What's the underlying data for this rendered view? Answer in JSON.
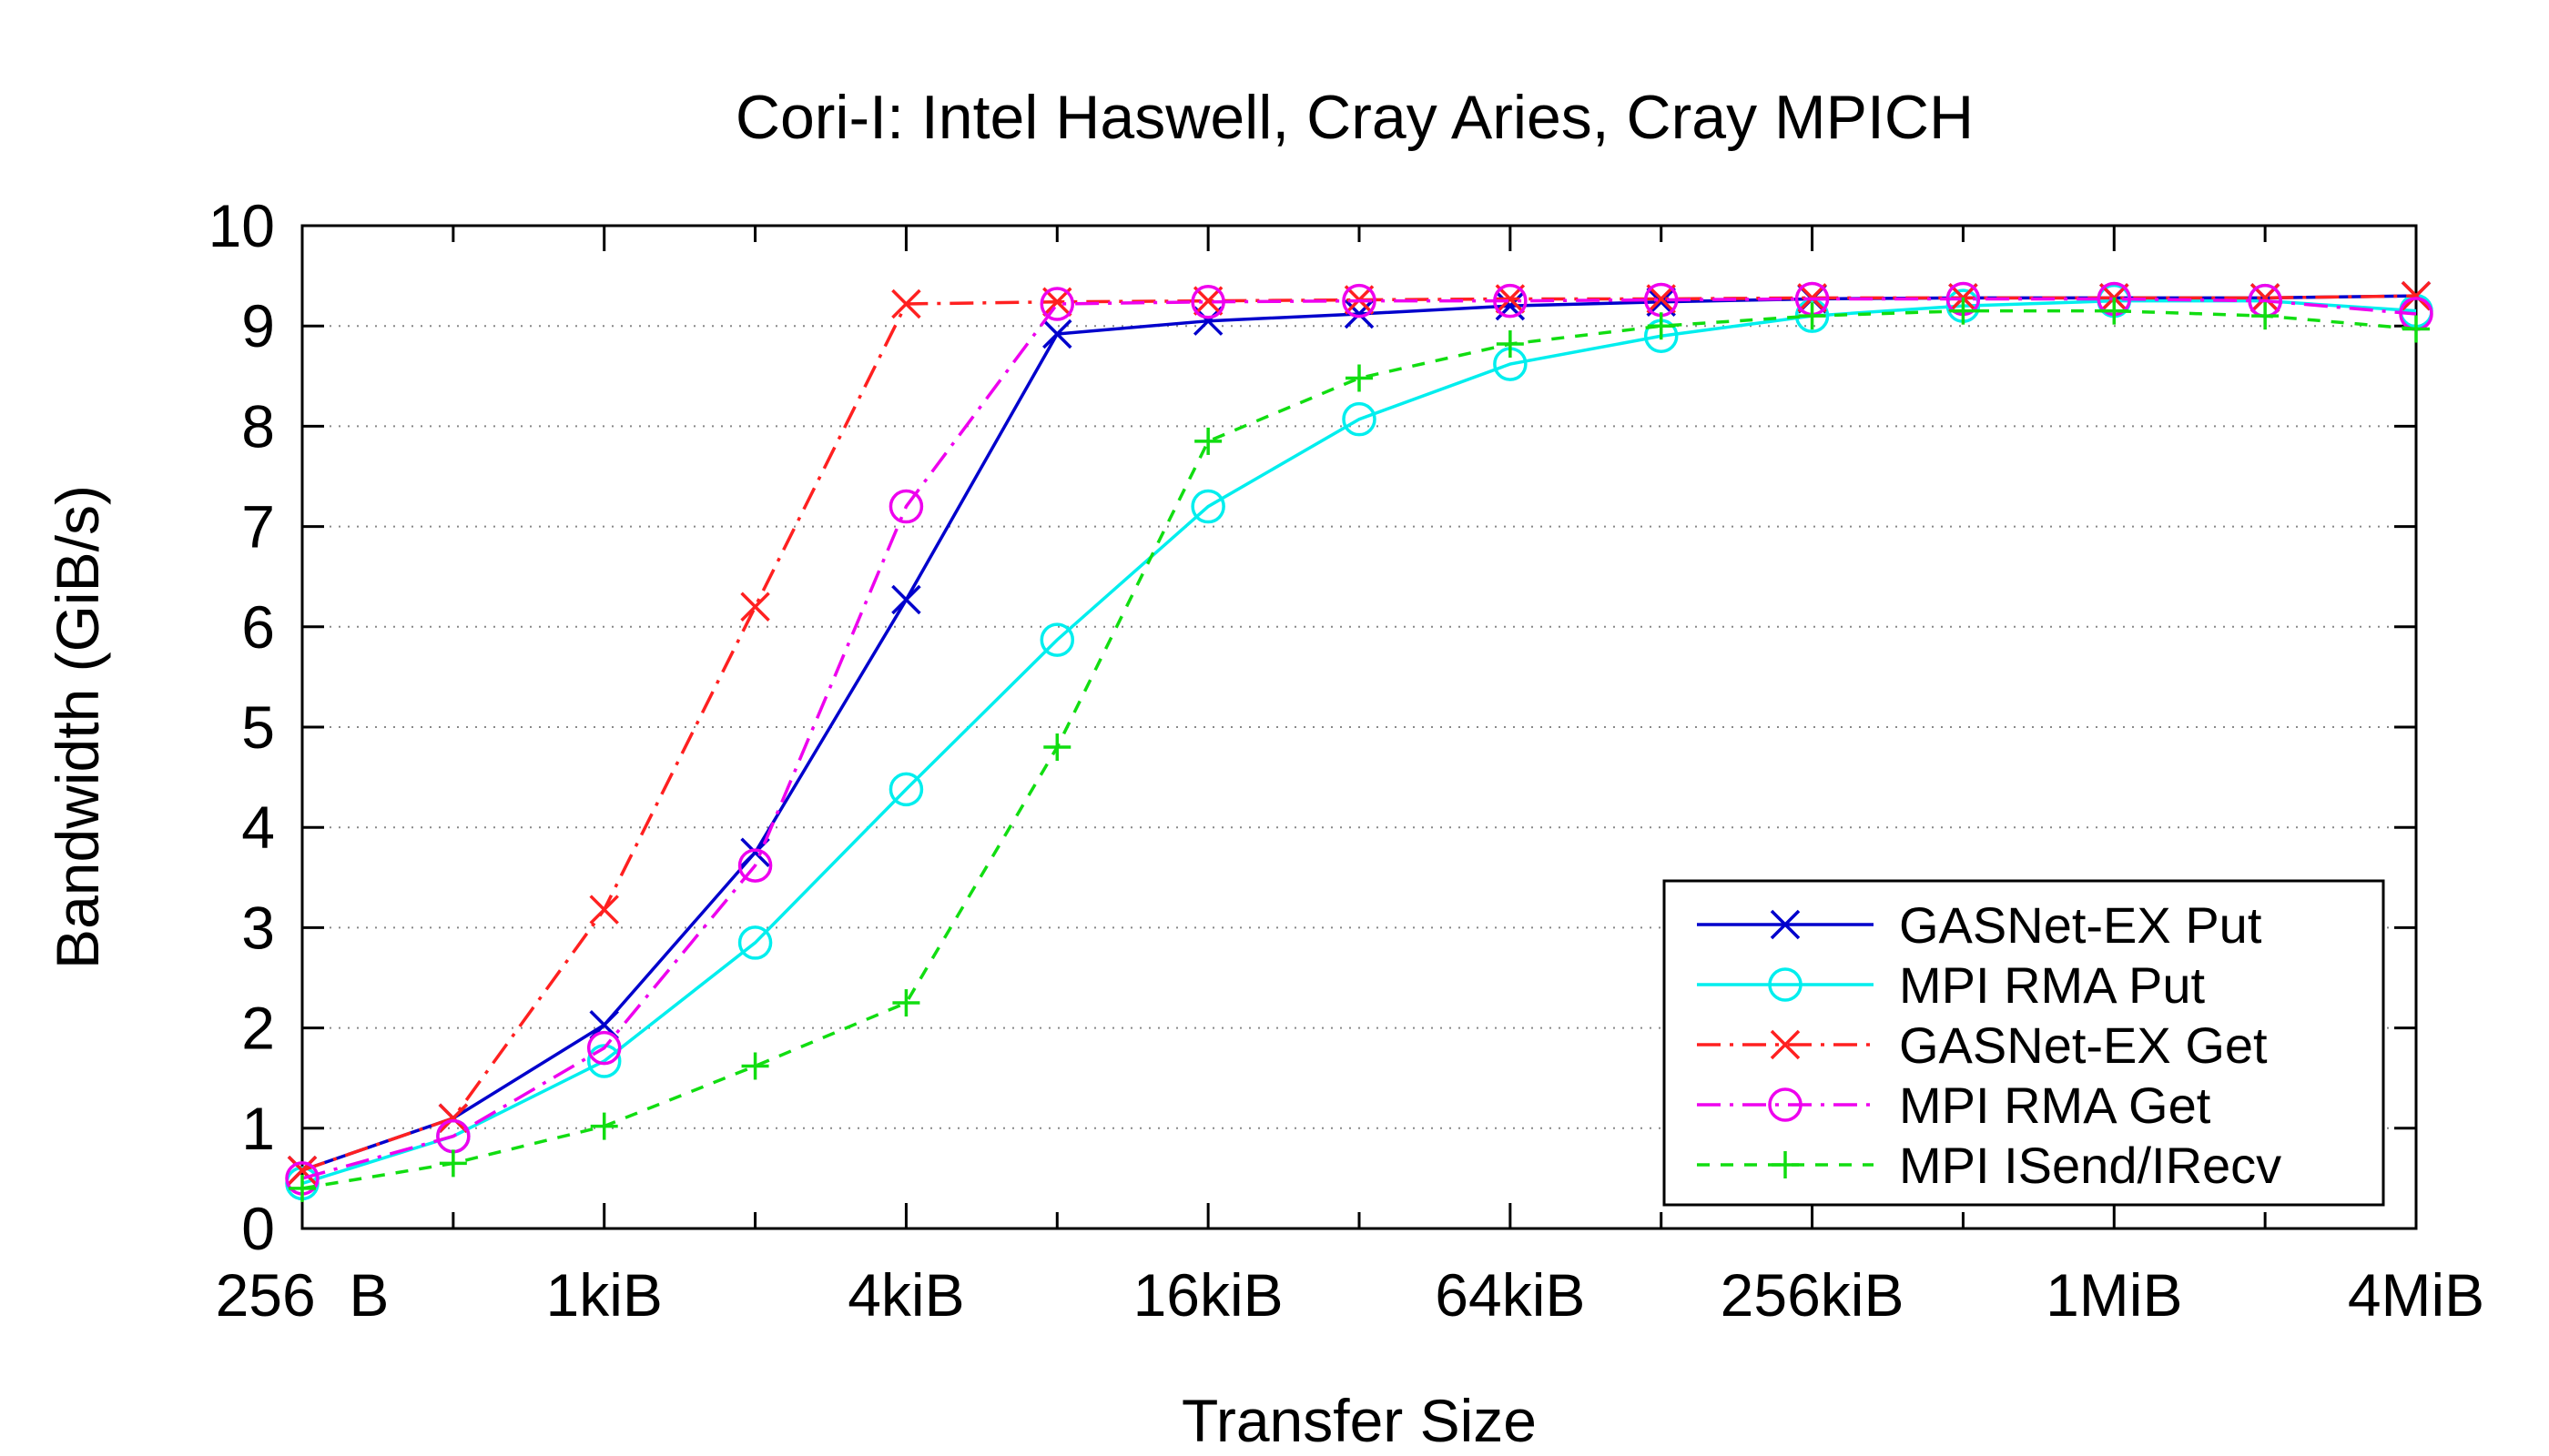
{
  "chart_data": {
    "type": "line",
    "title": "Cori-I: Intel Haswell, Cray Aries, Cray MPICH",
    "xlabel": "Transfer Size",
    "ylabel": "Bandwidth (GiB/s)",
    "x_scale": "log2",
    "x": [
      "256 B",
      "512 B",
      "1kiB",
      "2kiB",
      "4kiB",
      "8kiB",
      "16kiB",
      "32kiB",
      "64kiB",
      "128kiB",
      "256kiB",
      "512kiB",
      "1MiB",
      "2MiB",
      "4MiB"
    ],
    "x_tick_labels": [
      "256  B",
      "1kiB",
      "4kiB",
      "16kiB",
      "64kiB",
      "256kiB",
      "1MiB",
      "4MiB"
    ],
    "ylim": [
      0,
      10
    ],
    "y_ticks": [
      "0",
      "1",
      "2",
      "3",
      "4",
      "5",
      "6",
      "7",
      "8",
      "9",
      "10"
    ],
    "grid": "horizontal dotted",
    "legend_position": "bottom-right",
    "series": [
      {
        "name": "GASNet-EX Put",
        "color": "#0000cc",
        "marker": "x",
        "line": "solid",
        "values": [
          0.58,
          1.1,
          2.03,
          3.75,
          6.27,
          8.92,
          9.05,
          9.12,
          9.2,
          9.24,
          9.27,
          9.28,
          9.28,
          9.28,
          9.3
        ]
      },
      {
        "name": "MPI RMA Put",
        "color": "#00eeee",
        "marker": "circle",
        "line": "solid",
        "values": [
          0.45,
          0.92,
          1.67,
          2.85,
          4.38,
          5.87,
          7.2,
          8.07,
          8.62,
          8.9,
          9.1,
          9.2,
          9.25,
          9.25,
          9.15
        ]
      },
      {
        "name": "GASNet-EX Get",
        "color": "#ff2020",
        "marker": "x",
        "line": "dashdot",
        "values": [
          0.58,
          1.1,
          3.18,
          6.2,
          9.22,
          9.24,
          9.25,
          9.26,
          9.27,
          9.27,
          9.28,
          9.28,
          9.28,
          9.28,
          9.3
        ]
      },
      {
        "name": "MPI RMA Get",
        "color": "#ee00ee",
        "marker": "circle",
        "line": "dashdot",
        "values": [
          0.5,
          0.92,
          1.8,
          3.62,
          7.2,
          9.22,
          9.24,
          9.25,
          9.25,
          9.26,
          9.27,
          9.27,
          9.27,
          9.25,
          9.12
        ]
      },
      {
        "name": "MPI ISend/IRecv",
        "color": "#11dd11",
        "marker": "plus",
        "line": "dashed",
        "values": [
          0.4,
          0.65,
          1.02,
          1.62,
          2.25,
          4.8,
          7.85,
          8.48,
          8.82,
          9.0,
          9.1,
          9.15,
          9.15,
          9.1,
          8.97
        ]
      }
    ]
  }
}
